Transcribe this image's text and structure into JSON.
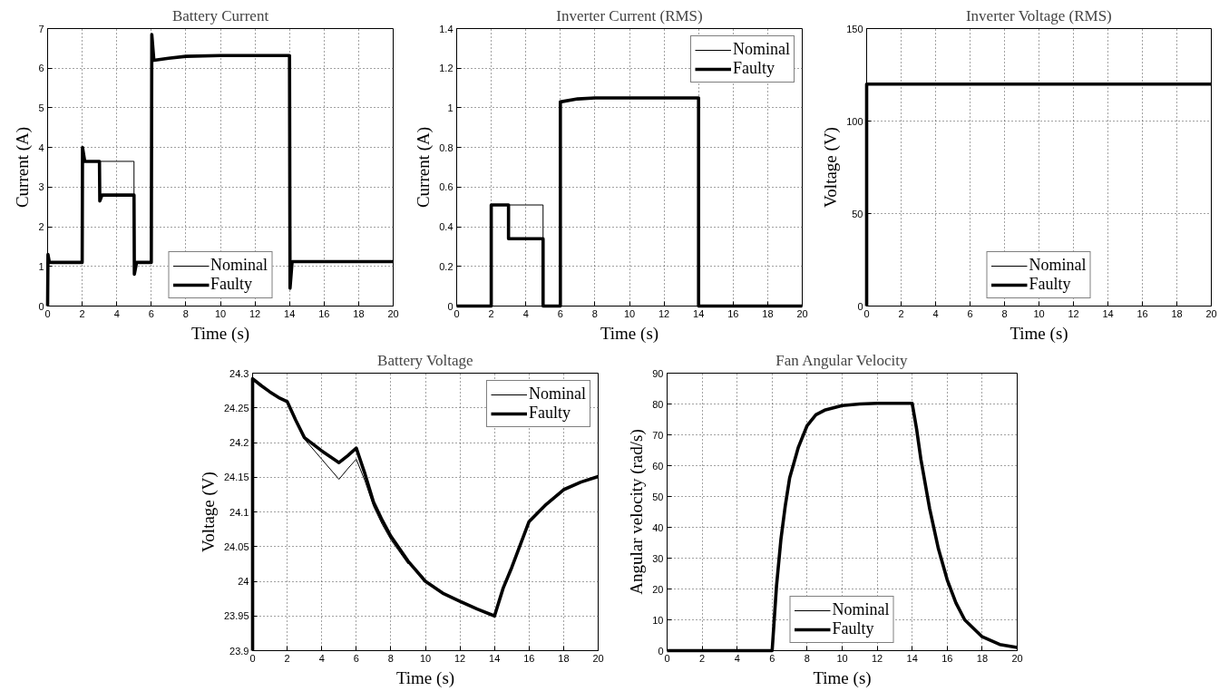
{
  "chart_data": [
    {
      "type": "line",
      "title": "Battery Current",
      "xlabel": "Time (s)",
      "ylabel": "Current (A)",
      "xlim": [
        0,
        20
      ],
      "xticks": [
        0,
        2,
        4,
        6,
        8,
        10,
        12,
        14,
        16,
        18,
        20
      ],
      "ylim": [
        0,
        7
      ],
      "yticks": [
        0,
        1,
        2,
        3,
        4,
        5,
        6,
        7
      ],
      "grid": true,
      "legend": "bottom",
      "line_style": "solid",
      "marker": "none",
      "series": [
        {
          "name": "Nominal",
          "color": "#000000",
          "x": [
            3,
            5,
            5
          ],
          "values": [
            3.65,
            3.65,
            2.8
          ]
        },
        {
          "name": "Faulty",
          "color": "#000000",
          "x": [
            0,
            0.02,
            0.1,
            2,
            2.02,
            2.15,
            3,
            3.02,
            3.15,
            5,
            5.02,
            5.15,
            6,
            6.03,
            6.15,
            7,
            8,
            10,
            14,
            14.03,
            14.15,
            20
          ],
          "values": [
            0,
            1.3,
            1.1,
            1.1,
            4.0,
            3.65,
            3.65,
            2.65,
            2.8,
            2.8,
            0.8,
            1.1,
            1.1,
            6.85,
            6.2,
            6.25,
            6.3,
            6.32,
            6.32,
            0.45,
            1.12,
            1.12
          ]
        }
      ]
    },
    {
      "type": "line",
      "title": "Inverter Current (RMS)",
      "xlabel": "Time (s)",
      "ylabel": "Current (A)",
      "xlim": [
        0,
        20
      ],
      "xticks": [
        0,
        2,
        4,
        6,
        8,
        10,
        12,
        14,
        16,
        18,
        20
      ],
      "ylim": [
        0,
        1.4
      ],
      "yticks": [
        0,
        0.2,
        0.4,
        0.6,
        0.8,
        1,
        1.2,
        1.4
      ],
      "grid": true,
      "legend": "top right",
      "line_style": "solid",
      "marker": "none",
      "series": [
        {
          "name": "Nominal",
          "color": "#000000",
          "x": [
            3,
            5,
            5
          ],
          "values": [
            0.51,
            0.51,
            0.34
          ]
        },
        {
          "name": "Faulty",
          "color": "#000000",
          "x": [
            0,
            2,
            2,
            3,
            3,
            5,
            5,
            6,
            6,
            7,
            8,
            14,
            14,
            20
          ],
          "values": [
            0,
            0,
            0.51,
            0.51,
            0.34,
            0.34,
            0,
            0,
            1.03,
            1.045,
            1.05,
            1.05,
            0,
            0
          ]
        }
      ]
    },
    {
      "type": "line",
      "title": "Inverter Voltage (RMS)",
      "xlabel": "Time (s)",
      "ylabel": "Voltage (V)",
      "xlim": [
        0,
        20
      ],
      "xticks": [
        0,
        2,
        4,
        6,
        8,
        10,
        12,
        14,
        16,
        18,
        20
      ],
      "ylim": [
        0,
        150
      ],
      "yticks": [
        0,
        50,
        100,
        150
      ],
      "grid": true,
      "legend": "bottom",
      "line_style": "solid",
      "marker": "none",
      "series": [
        {
          "name": "Nominal",
          "color": "#000000"
        },
        {
          "name": "Faulty",
          "color": "#000000",
          "x": [
            0,
            0,
            2,
            4,
            6,
            8,
            10,
            12,
            14,
            16,
            18,
            20
          ],
          "values": [
            0,
            120,
            120,
            120,
            120,
            120,
            120,
            120,
            120,
            120,
            120,
            120
          ]
        }
      ]
    },
    {
      "type": "line",
      "title": "Battery Voltage",
      "xlabel": "Time (s)",
      "ylabel": "Voltage (V)",
      "xlim": [
        0,
        20
      ],
      "xticks": [
        0,
        2,
        4,
        6,
        8,
        10,
        12,
        14,
        16,
        18,
        20
      ],
      "ylim": [
        23.9,
        24.3
      ],
      "yticks": [
        23.9,
        23.95,
        24,
        24.05,
        24.1,
        24.15,
        24.2,
        24.25,
        24.3
      ],
      "grid": true,
      "legend": "top right",
      "line_style": "solid",
      "marker": "none",
      "series": [
        {
          "name": "Nominal",
          "color": "#000000",
          "x": [
            3,
            4,
            5,
            5.5,
            6,
            6.5,
            7,
            7.5,
            8,
            9
          ],
          "values": [
            24.205,
            24.176,
            24.147,
            24.162,
            24.176,
            24.145,
            24.108,
            24.082,
            24.06,
            24.025
          ]
        },
        {
          "name": "Faulty",
          "color": "#000000",
          "x": [
            0,
            0,
            0.5,
            1,
            1.5,
            2,
            2.5,
            3,
            4,
            5,
            5.5,
            6,
            6.5,
            7,
            7.5,
            8,
            9,
            10,
            11,
            12,
            13,
            14,
            14.5,
            15,
            16,
            17,
            18,
            19,
            20
          ],
          "values": [
            23.9,
            24.292,
            24.282,
            24.273,
            24.265,
            24.259,
            24.232,
            24.207,
            24.188,
            24.171,
            24.181,
            24.192,
            24.155,
            24.114,
            24.088,
            24.065,
            24.029,
            24.0,
            23.983,
            23.971,
            23.96,
            23.95,
            23.99,
            24.02,
            24.086,
            24.111,
            24.132,
            24.143,
            24.151
          ]
        }
      ]
    },
    {
      "type": "line",
      "title": "Fan Angular Velocity",
      "xlabel": "Time (s)",
      "ylabel": "Angular velocity (rad/s)",
      "xlim": [
        0,
        20
      ],
      "xticks": [
        0,
        2,
        4,
        6,
        8,
        10,
        12,
        14,
        16,
        18,
        20
      ],
      "ylim": [
        0,
        90
      ],
      "yticks": [
        0,
        10,
        20,
        30,
        40,
        50,
        60,
        70,
        80,
        90
      ],
      "grid": true,
      "legend": "bottom",
      "line_style": "solid",
      "marker": "none",
      "series": [
        {
          "name": "Nominal",
          "color": "#000000"
        },
        {
          "name": "Faulty",
          "color": "#000000",
          "x": [
            0,
            6,
            6.25,
            6.5,
            6.75,
            7,
            7.5,
            8,
            8.5,
            9,
            10,
            11,
            12,
            14,
            14.25,
            14.5,
            15,
            15.5,
            16,
            16.5,
            17,
            18,
            19,
            20
          ],
          "values": [
            0,
            0,
            21,
            36,
            47,
            56,
            66,
            73,
            76.5,
            78,
            79.5,
            80,
            80.2,
            80.2,
            72,
            62,
            46,
            33,
            23,
            15.5,
            10,
            4.5,
            2,
            1
          ]
        }
      ]
    }
  ]
}
